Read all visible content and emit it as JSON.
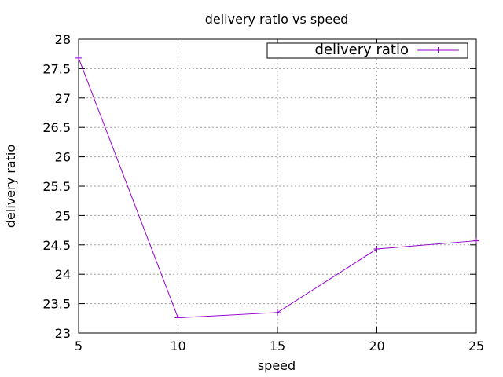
{
  "chart_data": {
    "type": "line",
    "title": "delivery ratio vs speed",
    "xlabel": "speed",
    "ylabel": "delivery ratio",
    "xlim": [
      5,
      25
    ],
    "ylim": [
      23,
      28
    ],
    "xticks": [
      5,
      10,
      15,
      20,
      25
    ],
    "yticks": [
      23,
      23.5,
      24,
      24.5,
      25,
      25.5,
      26,
      26.5,
      27,
      27.5,
      28
    ],
    "grid": true,
    "legend_position": "top-right",
    "series": [
      {
        "name": "delivery ratio",
        "color": "#9400d3",
        "marker": "plus",
        "x": [
          5,
          10,
          15,
          20,
          25
        ],
        "y": [
          27.68,
          23.26,
          23.35,
          24.43,
          24.57
        ]
      }
    ]
  }
}
